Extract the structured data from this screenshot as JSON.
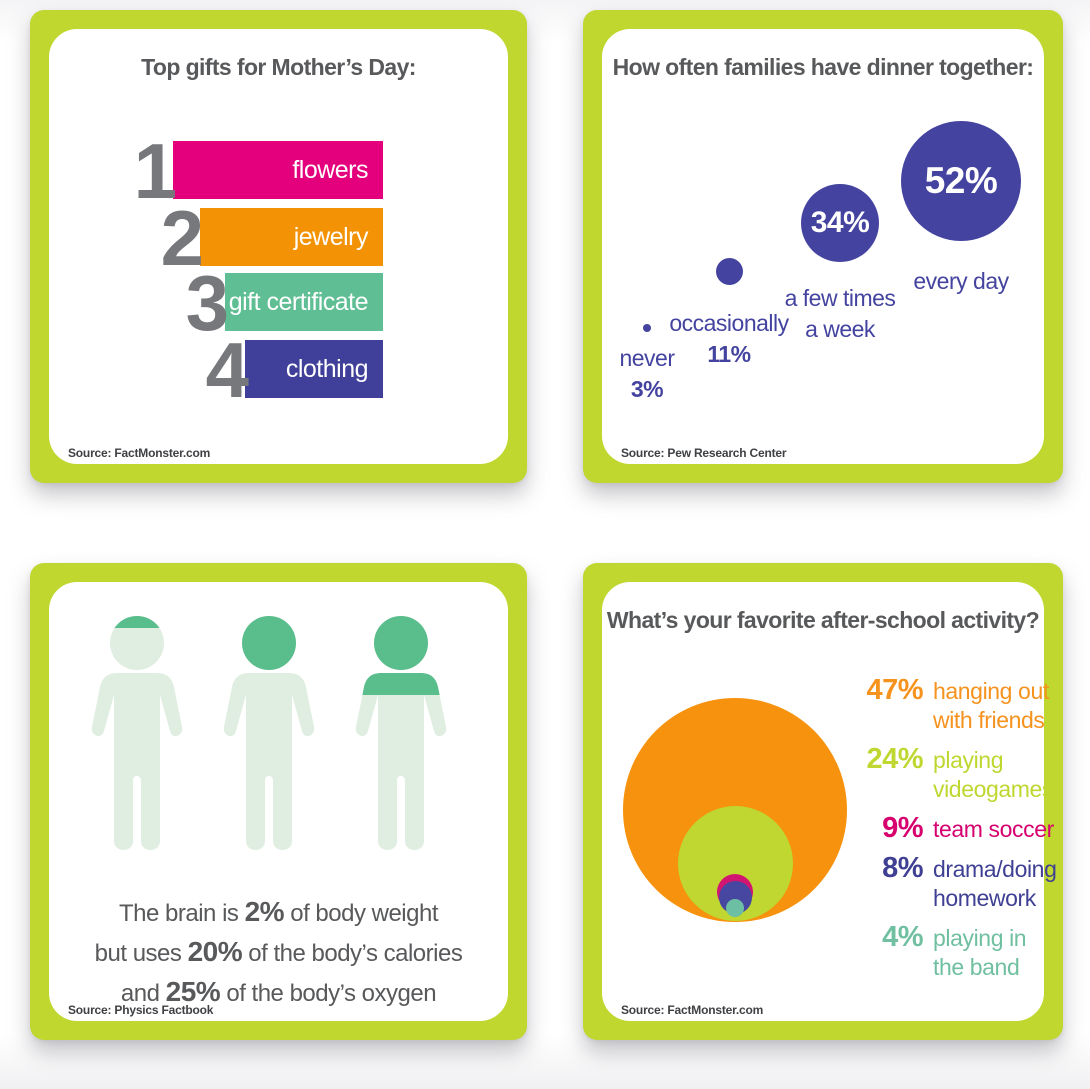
{
  "page": {
    "accent_green": "#BFD72E",
    "title_color": "#58595B",
    "source_color": "#3F4043",
    "rank_number_color": "#77787B"
  },
  "cards": {
    "gifts": {
      "title": "Top gifts for Mother’s Day:",
      "source": "Source: FactMonster.com",
      "bars": [
        {
          "rank": "1",
          "label": "flowers",
          "color": "#E4007C"
        },
        {
          "rank": "2",
          "label": "jewelry",
          "color": "#F39204"
        },
        {
          "rank": "3",
          "label": "gift certificate",
          "color": "#5FBE93"
        },
        {
          "rank": "4",
          "label": "clothing",
          "color": "#40409A"
        }
      ]
    },
    "dinner": {
      "title": "How often families have dinner together:",
      "source": "Source: Pew Research Center",
      "bubble_color": "#4444A0",
      "bubbles": [
        {
          "lines": [
            "never"
          ],
          "pct": "3%",
          "value": 3,
          "pct_inside": false
        },
        {
          "lines": [
            "occasionally"
          ],
          "pct": "11%",
          "value": 11,
          "pct_inside": false
        },
        {
          "lines": [
            "a few times",
            "a week"
          ],
          "pct": "34%",
          "value": 34,
          "pct_inside": true
        },
        {
          "lines": [
            "every day"
          ],
          "pct": "52%",
          "value": 52,
          "pct_inside": true
        }
      ]
    },
    "brain": {
      "source": "Source: Physics Factbook",
      "light_color": "#DFEEE0",
      "dark_color": "#5ABD8C",
      "figure_fill_labels": [
        "2%",
        "20%",
        "25%"
      ],
      "lines": [
        [
          {
            "t": "The brain is "
          },
          {
            "t": "2%",
            "b": true
          },
          {
            "t": " of body weight"
          }
        ],
        [
          {
            "t": "but uses "
          },
          {
            "t": "20%",
            "b": true
          },
          {
            "t": " of the body’s calories"
          }
        ],
        [
          {
            "t": "and "
          },
          {
            "t": "25%",
            "b": true
          },
          {
            "t": " of the body’s oxygen"
          }
        ]
      ]
    },
    "activity": {
      "title": "What’s your favorite after-school activity?",
      "source": "Source: FactMonster.com",
      "circles": [
        {
          "value": 47,
          "color": "#F6920D"
        },
        {
          "value": 24,
          "color": "#BFD730"
        },
        {
          "value": 9,
          "color": "#D31572"
        },
        {
          "value": 8,
          "color": "#4747A1"
        },
        {
          "value": 4,
          "color": "#6CBFA3"
        }
      ],
      "legend": [
        {
          "pct": "47%",
          "lines": [
            "hanging out",
            "with friends"
          ],
          "color": "#F6921E"
        },
        {
          "pct": "24%",
          "lines": [
            "playing",
            "videogames"
          ],
          "color": "#BFD730"
        },
        {
          "pct": "9%",
          "lines": [
            "team soccer"
          ],
          "color": "#D6006F"
        },
        {
          "pct": "8%",
          "lines": [
            "drama/doing",
            "homework"
          ],
          "color": "#3F3F94"
        },
        {
          "pct": "4%",
          "lines": [
            "playing in",
            "the band"
          ],
          "color": "#6FBFA0"
        }
      ]
    }
  },
  "chart_data": [
    {
      "type": "bar",
      "title": "Top gifts for Mother’s Day:",
      "categories": [
        "flowers",
        "jewelry",
        "gift certificate",
        "clothing"
      ],
      "values": [
        1,
        2,
        3,
        4
      ],
      "value_meaning": "rank (staggered ribbon list, no numeric axis)",
      "colors": [
        "#E4007C",
        "#F39204",
        "#5FBE93",
        "#40409A"
      ],
      "source": "FactMonster.com"
    },
    {
      "type": "bubble",
      "title": "How often families have dinner together:",
      "categories": [
        "never",
        "occasionally",
        "a few times a week",
        "every day"
      ],
      "values": [
        3,
        11,
        34,
        52
      ],
      "unit": "%",
      "color": "#4444A0",
      "source": "Pew Research Center",
      "layout_hint": "bubbles sized by value, ascending left-to-right"
    },
    {
      "type": "pictogram",
      "title": "The brain is 2% of body weight but uses 20% of the body’s calories and 25% of the body’s oxygen",
      "categories": [
        "of body weight",
        "of the body’s calories",
        "of the body’s oxygen"
      ],
      "values": [
        2,
        20,
        25
      ],
      "unit": "%",
      "source": "Physics Factbook",
      "layout_hint": "three human silhouettes filled green from top by value"
    },
    {
      "type": "nested-circles",
      "title": "What’s your favorite after-school activity?",
      "categories": [
        "hanging out with friends",
        "playing videogames",
        "team soccer",
        "drama/doing homework",
        "playing in the band"
      ],
      "values": [
        47,
        24,
        9,
        8,
        4
      ],
      "unit": "%",
      "colors": [
        "#F6920D",
        "#BFD730",
        "#D31572",
        "#4747A1",
        "#6CBFA3"
      ],
      "source": "FactMonster.com",
      "legend_position": "right"
    }
  ]
}
